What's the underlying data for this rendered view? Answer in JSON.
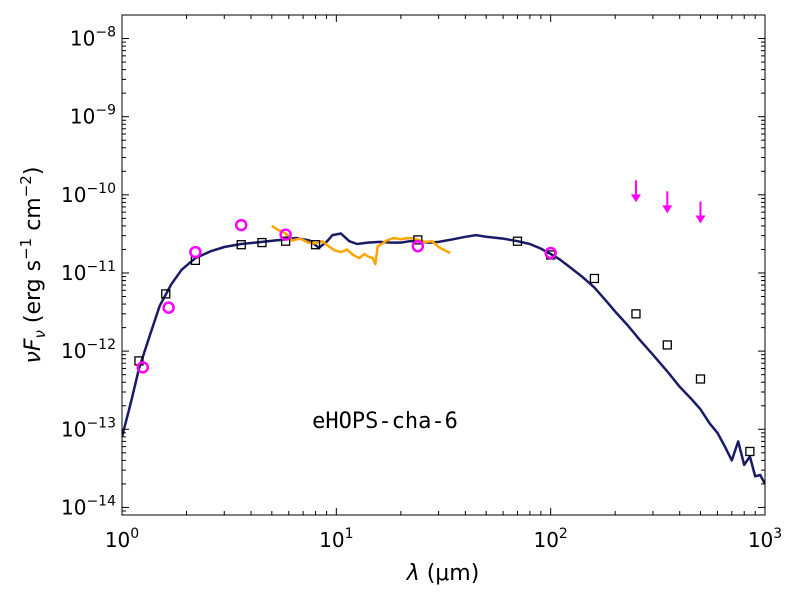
{
  "chart_data": {
    "type": "scatter",
    "xscale": "log",
    "yscale": "log",
    "xlim": [
      1,
      1000
    ],
    "ylim": [
      8e-15,
      2e-08
    ],
    "xticks": [
      1,
      10,
      100,
      1000
    ],
    "xtick_labels": [
      {
        "base": "10",
        "exp": "0"
      },
      {
        "base": "10",
        "exp": "1"
      },
      {
        "base": "10",
        "exp": "2"
      },
      {
        "base": "10",
        "exp": "3"
      }
    ],
    "yticks": [
      1e-14,
      1e-13,
      1e-12,
      1e-11,
      1e-10,
      1e-09,
      1e-08
    ],
    "ytick_labels": [
      {
        "base": "10",
        "exp": "−14"
      },
      {
        "base": "10",
        "exp": "−13"
      },
      {
        "base": "10",
        "exp": "−12"
      },
      {
        "base": "10",
        "exp": "−11"
      },
      {
        "base": "10",
        "exp": "−10"
      },
      {
        "base": "10",
        "exp": "−9"
      },
      {
        "base": "10",
        "exp": "−8"
      }
    ],
    "xlabel": {
      "sym": "λ",
      "unit": " (μm)"
    },
    "ylabel": {
      "sym1": "ν",
      "sym2": "F",
      "sub": "ν",
      "p1": " (erg s",
      "e1": "−1",
      "p2": " cm",
      "e2": "−2",
      "p3": ")"
    },
    "annotation": "eHOPS-cha-6",
    "grid": false,
    "colors": {
      "model": "#1a1a66",
      "spectrum": "#ffa500",
      "photometry_circles": "#ff00ff",
      "upper_limits": "#ff00ff",
      "squares": "#000000"
    },
    "series": [
      {
        "kind": "line",
        "x": [
          1.0,
          1.1,
          1.2,
          1.35,
          1.5,
          1.7,
          1.9,
          2.2,
          2.6,
          3.0,
          3.6,
          4.5,
          5.5,
          6.5,
          7.5,
          8.3,
          9.0,
          9.6,
          10.5,
          11.5,
          12.5,
          14,
          16,
          18,
          20,
          22,
          24,
          27,
          30,
          35,
          40,
          45,
          50,
          60,
          70,
          80,
          90,
          100,
          110,
          120,
          140,
          160,
          180,
          200,
          230,
          260,
          300,
          350,
          400,
          450,
          500,
          550,
          600,
          650,
          700,
          750,
          800,
          850,
          900,
          950,
          1000
        ],
        "y": [
          8e-14,
          2.2e-13,
          6e-13,
          1.6e-12,
          3.8e-12,
          7.2e-12,
          1.1e-11,
          1.55e-11,
          1.9e-11,
          2.15e-11,
          2.35e-11,
          2.5e-11,
          2.65e-11,
          2.8e-11,
          2.6e-11,
          2.1e-11,
          2.5e-11,
          3.05e-11,
          3.2e-11,
          2.55e-11,
          2.35e-11,
          2.45e-11,
          2.5e-11,
          2.45e-11,
          2.45e-11,
          2.55e-11,
          2.55e-11,
          2.45e-11,
          2.5e-11,
          2.7e-11,
          2.9e-11,
          3.05e-11,
          2.9e-11,
          2.75e-11,
          2.55e-11,
          2.35e-11,
          2.05e-11,
          1.75e-11,
          1.5e-11,
          1.25e-11,
          9e-12,
          6.5e-12,
          4.5e-12,
          3.2e-12,
          2.1e-12,
          1.4e-12,
          9e-13,
          5.5e-13,
          3.5e-13,
          2.5e-13,
          1.8e-13,
          1.2e-13,
          9e-14,
          6e-14,
          4e-14,
          7e-14,
          3.5e-14,
          4.5e-14,
          2.5e-14,
          2.6e-14,
          2e-14
        ]
      },
      {
        "kind": "line",
        "x": [
          5.0,
          5.4,
          5.8,
          6.2,
          6.8,
          7.4,
          8.0,
          8.6,
          9.2,
          9.8,
          10.5,
          11.2,
          12.0,
          12.8,
          13.5,
          14.2,
          14.8,
          15.2,
          15.6,
          16.3,
          17.2,
          18.5,
          20,
          21.5,
          23,
          24.5,
          26,
          28,
          30,
          32,
          34
        ],
        "y": [
          4e-11,
          3.5e-11,
          3.2e-11,
          2.6e-11,
          2.75e-11,
          2.45e-11,
          2.4e-11,
          2.55e-11,
          2.2e-11,
          1.95e-11,
          1.85e-11,
          2e-11,
          1.7e-11,
          1.55e-11,
          1.75e-11,
          1.6e-11,
          1.55e-11,
          1.3e-11,
          2.2e-11,
          2.35e-11,
          2.6e-11,
          2.8e-11,
          2.7e-11,
          2.8e-11,
          2.75e-11,
          2.6e-11,
          2.5e-11,
          2.55e-11,
          2.15e-11,
          1.95e-11,
          1.8e-11
        ]
      },
      {
        "kind": "squares",
        "x": [
          1.2,
          1.6,
          2.2,
          3.6,
          4.5,
          5.8,
          8.0,
          24,
          70,
          100,
          160,
          250,
          350,
          500,
          850
        ],
        "y": [
          7.5e-13,
          5.4e-12,
          1.45e-11,
          2.3e-11,
          2.45e-11,
          2.55e-11,
          2.3e-11,
          2.65e-11,
          2.55e-11,
          1.7e-11,
          8.5e-12,
          3e-12,
          1.2e-12,
          4.4e-13,
          5.2e-14
        ]
      },
      {
        "kind": "circles",
        "x": [
          1.25,
          1.65,
          2.2,
          3.6,
          5.8,
          24,
          100
        ],
        "y": [
          6.2e-13,
          3.6e-12,
          1.85e-11,
          4.1e-11,
          3.1e-11,
          2.2e-11,
          1.8e-11
        ]
      },
      {
        "kind": "upper_limits",
        "x": [
          250,
          350,
          500
        ],
        "y": [
          8e-11,
          5.8e-11,
          4.3e-11
        ]
      }
    ]
  }
}
